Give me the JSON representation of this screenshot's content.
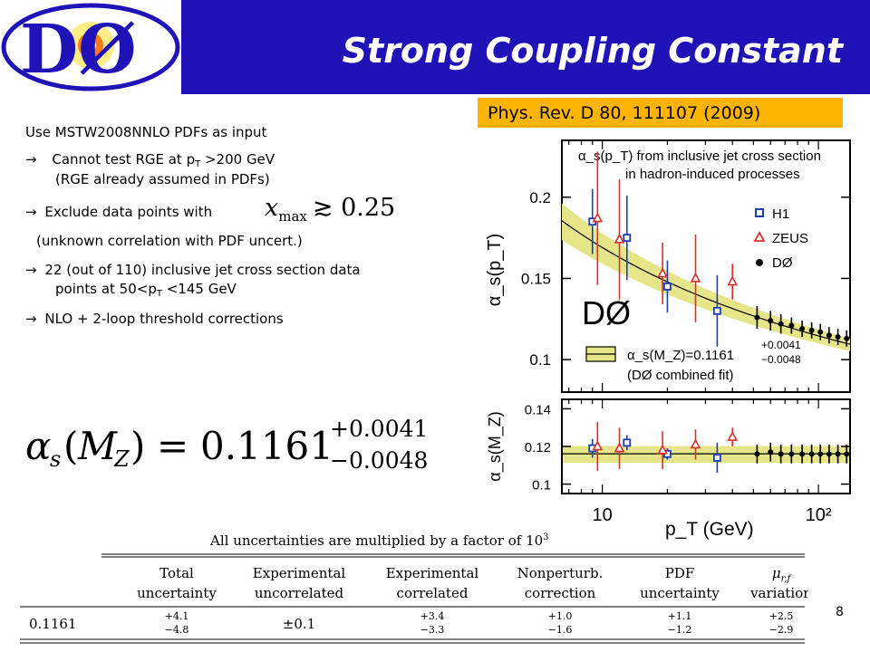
{
  "slide": {
    "title": "Strong Coupling Constant",
    "citation": "Phys. Rev. D 80, 111107 (2009)",
    "page_number": "8",
    "bullets": {
      "intro": "Use MSTW2008NNLO PDFs as input",
      "b1_pre": "Cannot test RGE at p",
      "b1_sub": "T",
      "b1_post": " >200 GeV",
      "b1_line2": "(RGE already assumed in PDFs)",
      "b2": "Exclude data points with",
      "b2_math_var": "x",
      "b2_math_sub": "max",
      "b2_math_rel": "≳ 0.25",
      "b2_line2": "(unknown correlation with PDF uncert.)",
      "b3_line1": "22 (out of 110) inclusive jet cross section data",
      "b3_line2_pre": "points at 50<p",
      "b3_line2_sub": "T",
      "b3_line2_post": " <145 GeV",
      "b4": "NLO + 2-loop threshold corrections"
    },
    "result_equation": {
      "lhs": "α",
      "lhs_sub": "s",
      "lhs_arg_open": "(",
      "lhs_arg": "M",
      "lhs_arg_sub": "Z",
      "lhs_arg_close": ")",
      "equals": "=",
      "value": "0.1161",
      "plus": "+0.0041",
      "minus": "−0.0048"
    },
    "logo": {
      "text": "DØ"
    }
  },
  "table": {
    "caption": "All uncertainties are multiplied by a factor of 10",
    "caption_exp": "3",
    "headers": [
      [
        "Total",
        "uncertainty"
      ],
      [
        "Experimental",
        "uncorrelated"
      ],
      [
        "Experimental",
        "correlated"
      ],
      [
        "Nonperturb.",
        "correction"
      ],
      [
        "PDF",
        "uncertainty"
      ],
      [
        "μ",
        "variation"
      ]
    ],
    "header_mu_sub": "r,f",
    "row_label": "0.1161",
    "cells": [
      {
        "plus": "+4.1",
        "minus": "−4.8"
      },
      {
        "sym": "±0.1"
      },
      {
        "plus": "+3.4",
        "minus": "−3.3"
      },
      {
        "plus": "+1.0",
        "minus": "−1.6"
      },
      {
        "plus": "+1.1",
        "minus": "−1.2"
      },
      {
        "plus": "+2.5",
        "minus": "−2.9"
      }
    ]
  },
  "chart_data": [
    {
      "type": "scatter",
      "title": "",
      "annotation_lines": [
        "α_s(p_T) from inclusive jet cross section",
        "in hadron-induced processes"
      ],
      "ylabel": "α_s(p_T)",
      "xscale": "log",
      "ylim": [
        0.08,
        0.235
      ],
      "xlim": [
        6.5,
        140
      ],
      "yticks": [
        "0.1",
        "0.15",
        "0.2"
      ],
      "legend_placement": "top-right",
      "watermark": "DØ",
      "band_label": "α_s(M_Z)=0.1161",
      "band_plus": "+0.0041",
      "band_minus": "−0.0048",
      "band_note": "(DØ combined fit)",
      "band_color": "#e7e58a",
      "series": [
        {
          "name": "H1",
          "color": "#1a3fb5",
          "marker": "square",
          "x": [
            9,
            13,
            20,
            34
          ],
          "y": [
            0.185,
            0.175,
            0.145,
            0.13
          ],
          "err": [
            0.02,
            0.026,
            0.016,
            0.022
          ]
        },
        {
          "name": "ZEUS",
          "color": "#d9302b",
          "marker": "triangle",
          "x": [
            9.5,
            12,
            19,
            27,
            40
          ],
          "y": [
            0.187,
            0.174,
            0.153,
            0.15,
            0.148
          ],
          "err": [
            0.041,
            0.037,
            0.019,
            0.027,
            0.011
          ]
        },
        {
          "name": "DØ",
          "color": "#000000",
          "marker": "circle",
          "x": [
            52,
            60,
            67,
            75,
            84,
            93,
            102,
            112,
            123,
            135
          ],
          "y": [
            0.126,
            0.124,
            0.122,
            0.121,
            0.119,
            0.118,
            0.117,
            0.115,
            0.114,
            0.113
          ],
          "err": [
            0.007,
            0.006,
            0.006,
            0.005,
            0.005,
            0.005,
            0.005,
            0.005,
            0.005,
            0.005
          ]
        }
      ]
    },
    {
      "type": "scatter",
      "title": "",
      "ylabel": "α_s(M_Z)",
      "xlabel": "p_T (GeV)",
      "xscale": "log",
      "xticks": [
        "10",
        "10²"
      ],
      "ylim": [
        0.095,
        0.145
      ],
      "yticks": [
        "0.1",
        "0.12",
        "0.14"
      ],
      "band_center": 0.1161,
      "band_plus": 0.0041,
      "band_minus": 0.0048,
      "series": [
        {
          "name": "H1",
          "color": "#1a3fb5",
          "marker": "square",
          "x": [
            9,
            13,
            20,
            34
          ],
          "y": [
            0.119,
            0.122,
            0.116,
            0.114
          ],
          "err": [
            0.005,
            0.004,
            0.003,
            0.008
          ]
        },
        {
          "name": "ZEUS",
          "color": "#d9302b",
          "marker": "triangle",
          "x": [
            9.5,
            12,
            19,
            27,
            40
          ],
          "y": [
            0.12,
            0.119,
            0.118,
            0.121,
            0.125
          ],
          "err": [
            0.013,
            0.011,
            0.01,
            0.008,
            0.005
          ]
        },
        {
          "name": "DØ",
          "color": "#000000",
          "marker": "circle",
          "x": [
            52,
            60,
            67,
            75,
            84,
            93,
            102,
            112,
            123,
            135
          ],
          "y": [
            0.116,
            0.117,
            0.116,
            0.116,
            0.116,
            0.116,
            0.116,
            0.116,
            0.116,
            0.116
          ],
          "err": [
            0.005,
            0.005,
            0.005,
            0.005,
            0.005,
            0.005,
            0.005,
            0.005,
            0.005,
            0.005
          ]
        }
      ]
    }
  ]
}
